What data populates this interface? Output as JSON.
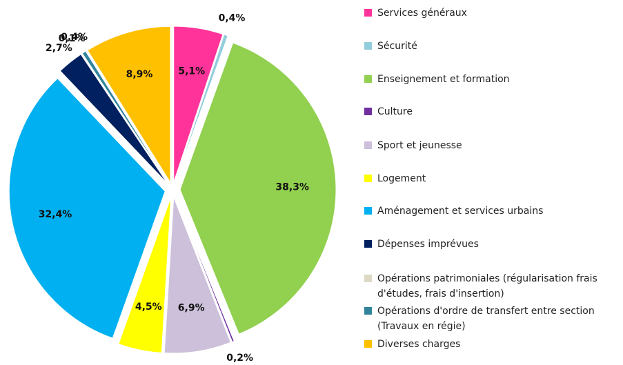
{
  "chart_data": {
    "type": "pie",
    "categories": [
      "Services généraux",
      "Sécurité",
      "Enseignement et formation",
      "Culture",
      "Sport et jeunesse",
      "Logement",
      "Aménagement et services urbains",
      "Dépenses imprévues",
      "Opérations patrimoniales (régularisation frais d'études, frais d'insertion)",
      "Opérations d'ordre de transfert entre section (Travaux en régie)",
      "Diverses charges"
    ],
    "values": [
      5.1,
      0.4,
      38.3,
      0.2,
      6.9,
      4.5,
      32.4,
      2.7,
      0.1,
      0.4,
      8.9
    ],
    "value_labels": [
      "5,1%",
      "0,4%",
      "38,3%",
      "0,2%",
      "6,9%",
      "4,5%",
      "32,4%",
      "2,7%",
      "0,1%",
      "0,4%",
      "8,9%"
    ],
    "colors": [
      "#ff3399",
      "#92cddc",
      "#92d050",
      "#7030a0",
      "#ccc0da",
      "#ffff00",
      "#00b0f0",
      "#002060",
      "#ddd9c4",
      "#31849b",
      "#ffc000"
    ],
    "legend": "right"
  }
}
